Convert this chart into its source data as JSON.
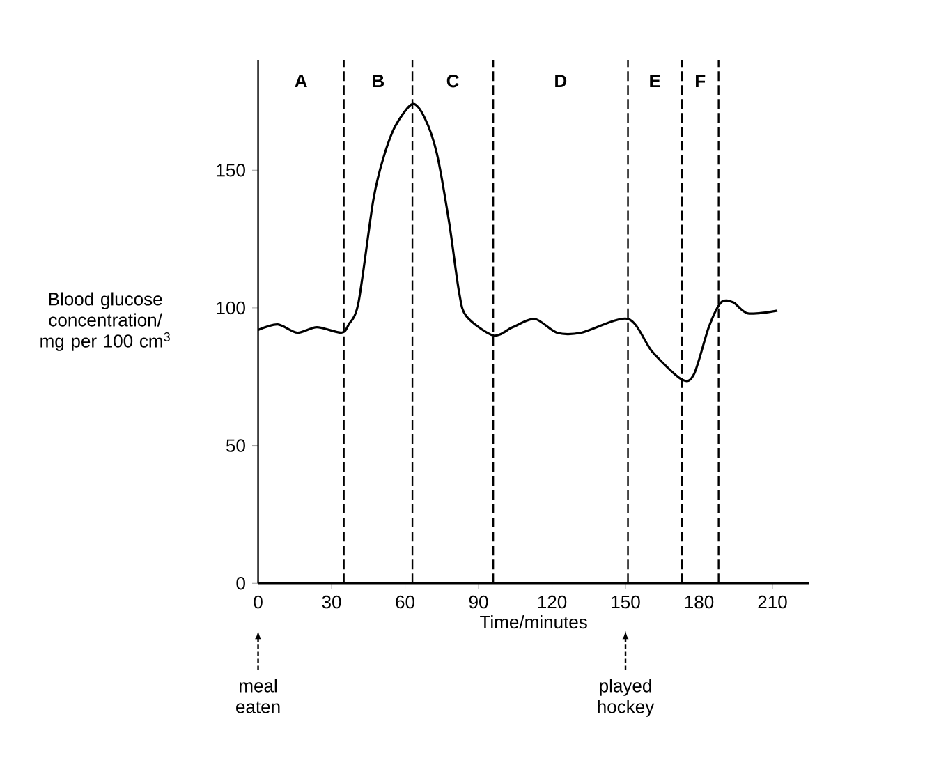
{
  "chart_data": {
    "type": "line",
    "xlabel": "Time/minutes",
    "ylabel": "Blood glucose concentration/ mg per 100 cm$^{3}$",
    "series": [
      {
        "color": "#000000",
        "x": [
          0,
          8,
          16,
          24,
          34,
          37,
          41,
          47,
          51,
          56,
          63,
          68,
          73,
          78,
          82,
          85,
          96,
          104,
          113,
          122,
          132,
          151,
          161,
          173,
          178,
          184,
          189,
          194,
          200,
          212
        ],
        "values": [
          92,
          94,
          91,
          93,
          91,
          94,
          102,
          139,
          154,
          166,
          174,
          169,
          156,
          131,
          106,
          97,
          90,
          93,
          96,
          91,
          91,
          96,
          84,
          74,
          76,
          93,
          102,
          102,
          98,
          99
        ]
      }
    ],
    "xlim": [
      0,
      225
    ],
    "ylim": [
      0,
      190
    ],
    "xticks": [
      0,
      30,
      60,
      90,
      120,
      150,
      180,
      210
    ],
    "yticks": [
      0,
      50,
      100,
      150
    ],
    "grid": false,
    "marker": "none",
    "line_style": "solid",
    "ref_lines": [
      {
        "axis": "x",
        "value": 35,
        "line_style": "dashed"
      },
      {
        "axis": "x",
        "value": 63,
        "line_style": "dashed"
      },
      {
        "axis": "x",
        "value": 96,
        "line_style": "dashed"
      },
      {
        "axis": "x",
        "value": 151,
        "line_style": "dashed"
      },
      {
        "axis": "x",
        "value": 173,
        "line_style": "dashed"
      },
      {
        "axis": "x",
        "value": 188,
        "line_style": "dashed"
      }
    ],
    "annotations": [
      "A",
      "B",
      "C",
      "D",
      "E",
      "F",
      {
        "text": "meal eaten",
        "x": 0
      },
      {
        "text": "played hockey",
        "x": 150
      }
    ]
  }
}
